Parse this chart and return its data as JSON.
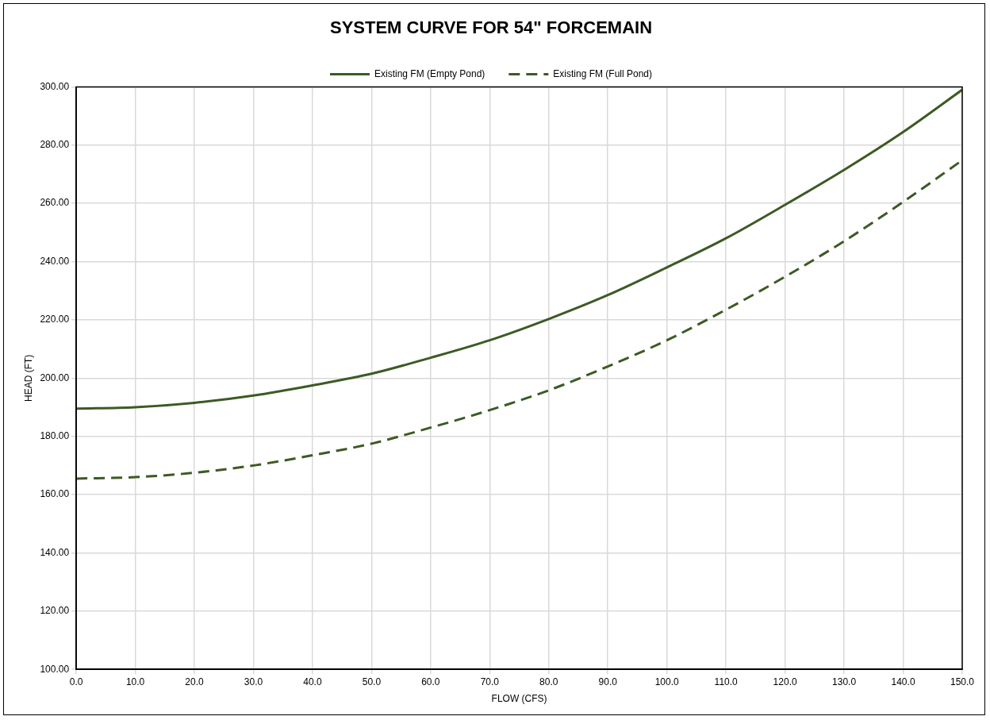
{
  "chart_data": {
    "type": "line",
    "title": "SYSTEM CURVE FOR 54\" FORCEMAIN",
    "xlabel": "FLOW (CFS)",
    "ylabel": "HEAD (FT)",
    "x": [
      0,
      10,
      20,
      30,
      40,
      50,
      60,
      70,
      80,
      90,
      100,
      110,
      120,
      130,
      140,
      150
    ],
    "series": [
      {
        "name": "Existing FM (Empty Pond)",
        "color": "#3d5a24",
        "line_style": "solid",
        "values": [
          189.5,
          190,
          191.5,
          194,
          197.5,
          201.5,
          207,
          213,
          220.3,
          228.5,
          238,
          248,
          259.5,
          271.5,
          284.5,
          299
        ]
      },
      {
        "name": "Existing FM (Full Pond)",
        "color": "#3d5a24",
        "line_style": "dashed",
        "values": [
          165.5,
          166,
          167.5,
          170,
          173.5,
          177.5,
          183,
          189,
          195.8,
          204,
          213,
          223.5,
          234.8,
          247,
          260.5,
          274.8
        ]
      }
    ],
    "xlim": [
      0,
      150
    ],
    "ylim": [
      100,
      300
    ],
    "xticks": [
      {
        "value": 0,
        "label": "0.0"
      },
      {
        "value": 10,
        "label": "10.0"
      },
      {
        "value": 20,
        "label": "20.0"
      },
      {
        "value": 30,
        "label": "30.0"
      },
      {
        "value": 40,
        "label": "40.0"
      },
      {
        "value": 50,
        "label": "50.0"
      },
      {
        "value": 60,
        "label": "60.0"
      },
      {
        "value": 70,
        "label": "70.0"
      },
      {
        "value": 80,
        "label": "80.0"
      },
      {
        "value": 90,
        "label": "90.0"
      },
      {
        "value": 100,
        "label": "100.0"
      },
      {
        "value": 110,
        "label": "110.0"
      },
      {
        "value": 120,
        "label": "120.0"
      },
      {
        "value": 130,
        "label": "130.0"
      },
      {
        "value": 140,
        "label": "140.0"
      },
      {
        "value": 150,
        "label": "150.0"
      }
    ],
    "yticks": [
      {
        "value": 100,
        "label": "100.00"
      },
      {
        "value": 120,
        "label": "120.00"
      },
      {
        "value": 140,
        "label": "140.00"
      },
      {
        "value": 160,
        "label": "160.00"
      },
      {
        "value": 180,
        "label": "180.00"
      },
      {
        "value": 200,
        "label": "200.00"
      },
      {
        "value": 220,
        "label": "220.00"
      },
      {
        "value": 240,
        "label": "240.00"
      },
      {
        "value": 260,
        "label": "260.00"
      },
      {
        "value": 280,
        "label": "280.00"
      },
      {
        "value": 300,
        "label": "300.00"
      }
    ],
    "grid": true,
    "legend": "top",
    "marker": "none"
  }
}
